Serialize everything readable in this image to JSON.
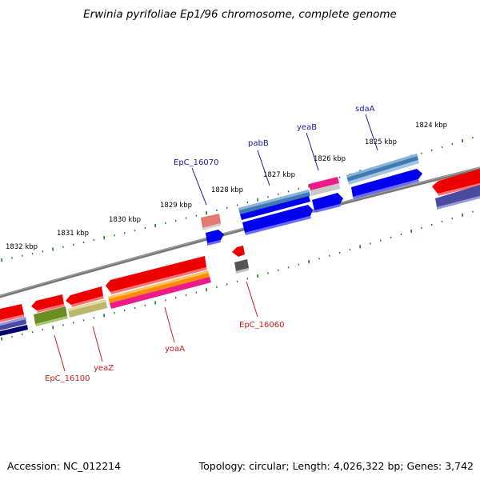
{
  "title": "Erwinia pyrifoliae Ep1/96 chromosome, complete genome",
  "footer": {
    "accession": "Accession: NC_012214",
    "topology": "Topology: circular; Length: 4,026,322 bp; Genes: 3,742"
  },
  "tick_labels": [
    "1832 kbp",
    "1831 kbp",
    "1830 kbp",
    "1829 kbp",
    "1828 kbp",
    "1827 kbp",
    "1826 kbp",
    "1825 kbp",
    "1824 kbp"
  ],
  "gene_labels": {
    "forward": [
      "EpC_16070",
      "pabB",
      "yeaB",
      "sdaA"
    ],
    "reverse": [
      "EpC_16100",
      "yeaZ",
      "yoaA",
      "EpC_16060"
    ]
  },
  "colors": {
    "backbone": "#777777",
    "tick_dots": "#1a7a1a",
    "forward_label": "#1a1aa0",
    "reverse_label": "#cc1a1a",
    "red": "#ee0000",
    "blue": "#0000ee",
    "steelblue": "#3f7ab0",
    "pink": "#ee1a8a",
    "salmon": "#e0706a",
    "olive": "#6b8e23",
    "khaki": "#bdb76b",
    "orange": "#ff8c00",
    "slate": "#4a4aa0",
    "navy": "#000070",
    "gray": "#555555"
  }
}
